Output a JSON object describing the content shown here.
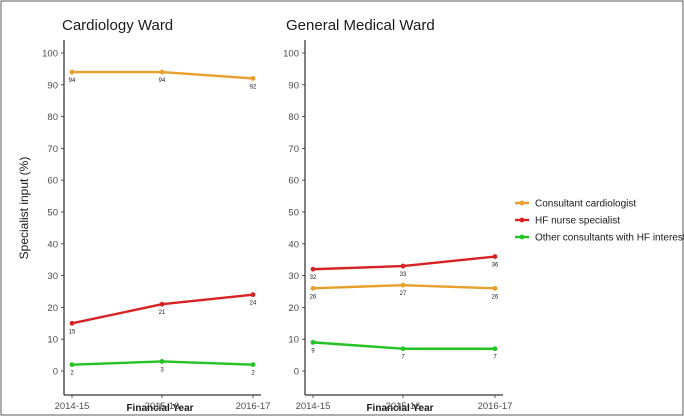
{
  "chart_data": {
    "type": "line",
    "ylabel": "Specialist input (%)",
    "ylim": [
      0,
      100
    ],
    "yticks": [
      0,
      10,
      20,
      30,
      40,
      50,
      60,
      70,
      80,
      90,
      100
    ],
    "categories": [
      "2014-15",
      "2015-16",
      "2016-17"
    ],
    "xlabel": "Financial Year",
    "legend_position": "right",
    "legend": [
      {
        "name": "Consultant cardiologist",
        "color": "#e8a02a"
      },
      {
        "name": "HF nurse specialist",
        "color": "#d62222"
      },
      {
        "name": "Other consultants with HF interest",
        "color": "#22c322"
      }
    ],
    "panels": [
      {
        "title": "Cardiology Ward",
        "series": [
          {
            "name": "Consultant cardiologist",
            "color": "#e8a02a",
            "values": [
              94,
              94,
              92
            ]
          },
          {
            "name": "HF nurse specialist",
            "color": "#d62222",
            "values": [
              15,
              21,
              24
            ]
          },
          {
            "name": "Other consultants with HF interest",
            "color": "#22c322",
            "values": [
              2,
              3,
              2
            ]
          }
        ]
      },
      {
        "title": "General Medical Ward",
        "series": [
          {
            "name": "Consultant cardiologist",
            "color": "#e8a02a",
            "values": [
              26,
              27,
              26
            ]
          },
          {
            "name": "HF nurse specialist",
            "color": "#d62222",
            "values": [
              32,
              33,
              36
            ]
          },
          {
            "name": "Other consultants with HF interest",
            "color": "#22c322",
            "values": [
              9,
              7,
              7
            ]
          }
        ]
      }
    ]
  }
}
